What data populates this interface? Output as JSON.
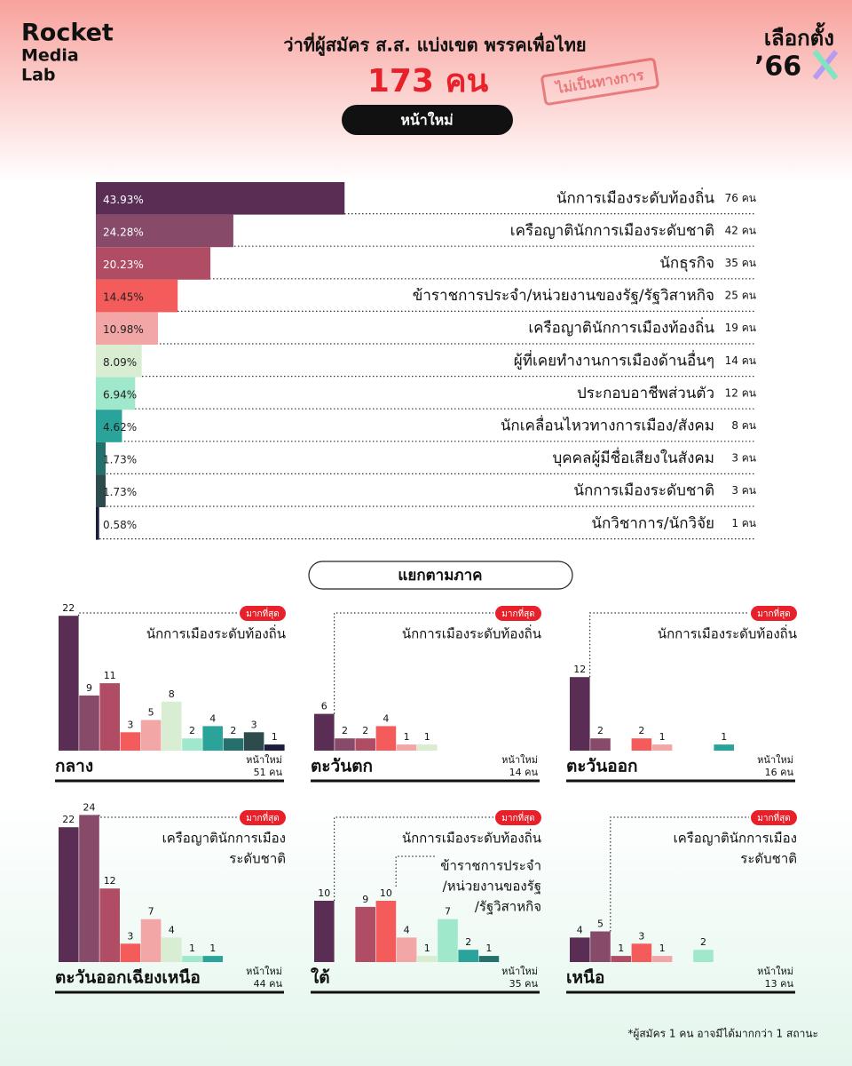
{
  "brand": {
    "lines": [
      "Rocket",
      "Media",
      "Lab"
    ]
  },
  "header": {
    "title": "ว่าที่ผู้สมัคร ส.ส. แบ่งเขต พรรคเพื่อไทย",
    "total": 173,
    "total_label": "173 คน",
    "tag": "หน้าใหม่",
    "stamp": "ไม่เป็นทางการ",
    "logo": {
      "word": "เลือกตั้ง",
      "year": "’66"
    }
  },
  "chart_data": [
    {
      "type": "hbar",
      "categories": [
        "นักการเมืองระดับท้องถิ่น",
        "เครือญาตินักการเมืองระดับชาติ",
        "นักธุรกิจ",
        "ข้าราชการประจำ/หน่วยงานของรัฐ/รัฐวิสาหกิจ",
        "เครือญาตินักการเมืองท้องถิ่น",
        "ผู้ที่เคยทำงานการเมืองด้านอื่นๆ",
        "ประกอบอาชีพส่วนตัว",
        "นักเคลื่อนไหวทางการเมือง/สังคม",
        "บุคคลผู้มีชื่อเสียงในสังคม",
        "นักการเมืองระดับชาติ",
        "นักวิชาการ/นักวิจัย"
      ],
      "values": [
        43.93,
        24.28,
        20.23,
        14.45,
        10.98,
        8.09,
        6.94,
        4.62,
        1.73,
        1.73,
        0.58
      ],
      "value_labels": [
        "43.93%",
        "24.28%",
        "20.23%",
        "14.45%",
        "10.98%",
        "8.09%",
        "6.94%",
        "4.62%",
        "1.73%",
        "1.73%",
        "0.58%"
      ],
      "counts": [
        76,
        42,
        35,
        25,
        19,
        14,
        12,
        8,
        3,
        3,
        1
      ],
      "count_labels": [
        "76 คน",
        "42 คน",
        "35 คน",
        "25 คน",
        "19 คน",
        "14 คน",
        "12 คน",
        "8 คน",
        "3 คน",
        "3 คน",
        "1 คน"
      ],
      "colors": [
        "#5a2e54",
        "#874a68",
        "#b04c63",
        "#f45b5b",
        "#f2a6a6",
        "#d8edd2",
        "#9fe8cc",
        "#2aa39b",
        "#23706c",
        "#2d4a4d",
        "#1c1c3c"
      ]
    },
    {
      "type": "bar",
      "title": "กลาง",
      "values": [
        22,
        9,
        11,
        3,
        5,
        8,
        2,
        4,
        2,
        3,
        1
      ],
      "new_label": "หน้าใหม่",
      "total": 51,
      "total_label": "51 คน",
      "badge": "มากที่สุด",
      "annotations": [
        [
          "นักการเมืองระดับท้องถิ่น"
        ]
      ]
    },
    {
      "type": "bar",
      "title": "ตะวันตก",
      "values": [
        6,
        2,
        2,
        4,
        1,
        1,
        null,
        null,
        null,
        null,
        null
      ],
      "new_label": "หน้าใหม่",
      "total": 14,
      "total_label": "14 คน",
      "badge": "มากที่สุด",
      "annotations": [
        [
          "นักการเมืองระดับท้องถิ่น"
        ]
      ]
    },
    {
      "type": "bar",
      "title": "ตะวันออก",
      "values": [
        12,
        2,
        null,
        2,
        1,
        null,
        null,
        1,
        null,
        null,
        null
      ],
      "new_label": "หน้าใหม่",
      "total": 16,
      "total_label": "16 คน",
      "badge": "มากที่สุด",
      "annotations": [
        [
          "นักการเมืองระดับท้องถิ่น"
        ]
      ]
    },
    {
      "type": "bar",
      "title": "ตะวันออกเฉียงเหนือ",
      "values": [
        22,
        24,
        12,
        3,
        7,
        4,
        1,
        1,
        null,
        null,
        null
      ],
      "new_label": "หน้าใหม่",
      "total": 44,
      "total_label": "44 คน",
      "badge": "มากที่สุด",
      "annotations": [
        [
          "เครือญาตินักการเมือง",
          "ระดับชาติ"
        ]
      ]
    },
    {
      "type": "bar",
      "title": "ใต้",
      "values": [
        10,
        null,
        9,
        10,
        4,
        1,
        7,
        2,
        1,
        null,
        null
      ],
      "new_label": "หน้าใหม่",
      "total": 35,
      "total_label": "35 คน",
      "badge": "มากที่สุด",
      "annotations": [
        [
          "นักการเมืองระดับท้องถิ่น"
        ],
        [
          "ข้าราชการประจำ",
          "/หน่วยงานของรัฐ",
          "/รัฐวิสาหกิจ"
        ]
      ]
    },
    {
      "type": "bar",
      "title": "เหนือ",
      "values": [
        4,
        5,
        1,
        3,
        1,
        null,
        2,
        null,
        null,
        null,
        null
      ],
      "new_label": "หน้าใหม่",
      "total": 13,
      "total_label": "13 คน",
      "badge": "มากที่สุด",
      "annotations": [
        [
          "เครือญาตินักการเมือง",
          "ระดับชาติ"
        ]
      ]
    }
  ],
  "section_title": "แยกตามภาค",
  "footnote": "*ผู้สมัคร 1 คน อาจมีได้มากกว่า 1 สถานะ"
}
